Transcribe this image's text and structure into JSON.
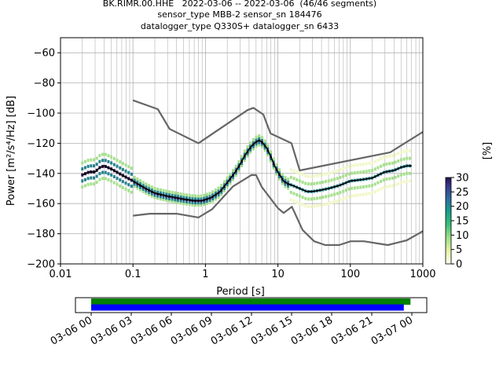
{
  "title_lines": [
    "BK.RIMR.00.HHE   2022-03-06 -- 2022-03-06  (46/46 segments)",
    "sensor_type MBB-2 sensor_sn 184476",
    "datalogger_type Q330S+ datalogger_sn 6433"
  ],
  "colorbar": {
    "label": "[%]",
    "ticks": [
      "0",
      "5",
      "10",
      "15",
      "20",
      "25",
      "30"
    ]
  },
  "timeline": {
    "tick_labels": [
      "03-06 00",
      "03-06 03",
      "03-06 06",
      "03-06 09",
      "03-06 12",
      "03-06 15",
      "03-06 18",
      "03-06 21",
      "03-07 00"
    ],
    "bars": [
      {
        "name": "data-availability",
        "color": "#008000",
        "start_hour": 0,
        "end_hour": 23.9
      },
      {
        "name": "psd-segments",
        "color": "#0000ff",
        "start_hour": 0,
        "end_hour": 23.4
      }
    ]
  },
  "chart_data": {
    "type": "line",
    "xlabel": "Period [s]",
    "ylabel": "Power [m²/s⁴/Hz] [dB]",
    "xscale": "log",
    "xlim": [
      0.01,
      1000
    ],
    "ylim": [
      -200,
      -50
    ],
    "x_tick_labels": [
      "0.01",
      "0.1",
      "1",
      "10",
      "100",
      "1000"
    ],
    "y_tick_labels": [
      "−200",
      "−180",
      "−160",
      "−140",
      "−120",
      "−100",
      "−80",
      "−60"
    ],
    "grid": true,
    "series": [
      {
        "role": "mean",
        "color": "#000000",
        "x": [
          0.02,
          0.025,
          0.03,
          0.035,
          0.04,
          0.05,
          0.07,
          0.1,
          0.15,
          0.2,
          0.3,
          0.5,
          0.7,
          0.9,
          1.2,
          1.6,
          2.0,
          2.5,
          3.0,
          3.5,
          4.0,
          4.5,
          5.0,
          5.5,
          6.0,
          7.0,
          8.0,
          9.0,
          10,
          12,
          14,
          16,
          20,
          25,
          30,
          40,
          50,
          70,
          100,
          150,
          200,
          300,
          400,
          500,
          600,
          700
        ],
        "y": [
          -141,
          -139,
          -139,
          -136,
          -135,
          -137,
          -141,
          -145,
          -150,
          -153,
          -155,
          -157,
          -158,
          -158,
          -156,
          -152,
          -146,
          -140,
          -134,
          -128,
          -124,
          -121,
          -119,
          -118,
          -119,
          -123,
          -129,
          -135,
          -139,
          -145,
          -147,
          -148,
          -150,
          -152,
          -152,
          -151,
          -150,
          -148,
          -145,
          -144,
          -143,
          -139,
          -138,
          -136,
          -135,
          -135
        ]
      },
      {
        "role": "nhnm",
        "color": "#666666",
        "x": [
          0.1,
          0.22,
          0.32,
          0.8,
          3.8,
          4.6,
          6.3,
          7.9,
          15.4,
          20,
          354.8,
          1000
        ],
        "y": [
          -91.5,
          -97.4,
          -110.5,
          -120,
          -98,
          -96.5,
          -101,
          -113.5,
          -120,
          -138,
          -126,
          -112.5
        ]
      },
      {
        "role": "nlnm",
        "color": "#666666",
        "x": [
          0.1,
          0.17,
          0.4,
          0.8,
          1.24,
          2.4,
          4.3,
          5.0,
          6.0,
          10,
          12,
          15.6,
          21.9,
          31.6,
          45,
          70,
          101,
          154,
          328,
          600,
          1000
        ],
        "y": [
          -168,
          -166.7,
          -166.7,
          -169.2,
          -163.7,
          -148.6,
          -141.1,
          -141.1,
          -149,
          -163,
          -166.2,
          -162.1,
          -177.5,
          -185,
          -187.5,
          -187.5,
          -185,
          -185,
          -187.5,
          -184.4,
          -178.3
        ]
      }
    ]
  }
}
